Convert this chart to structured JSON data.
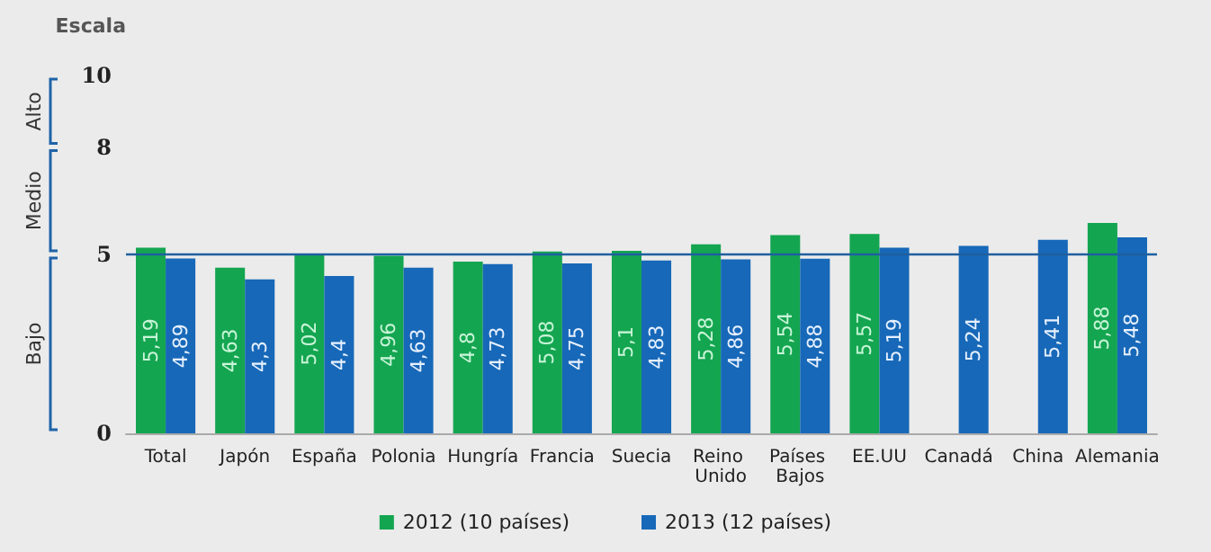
{
  "chart_data": {
    "type": "bar",
    "ylabel": "Escala",
    "categories": [
      "Total",
      "Japón",
      "España",
      "Polonia",
      "Hungría",
      "Francia",
      "Suecia",
      "Reino Unido",
      "Países Bajos",
      "EE.UU",
      "Canadá",
      "China",
      "Alemania"
    ],
    "series": [
      {
        "name": "2012 (10 países)",
        "color": "#14a550",
        "values": [
          5.19,
          4.63,
          5.02,
          4.96,
          4.8,
          5.08,
          5.1,
          5.28,
          5.54,
          5.57,
          null,
          null,
          5.88
        ],
        "value_labels": [
          "5,19",
          "4,63",
          "5,02",
          "4,96",
          "4,8",
          "5,08",
          "5,1",
          "5,28",
          "5,54",
          "5,57",
          null,
          null,
          "5,88"
        ]
      },
      {
        "name": "2013 (12 países)",
        "color": "#1768b8",
        "values": [
          4.89,
          4.3,
          4.4,
          4.63,
          4.73,
          4.75,
          4.83,
          4.86,
          4.88,
          5.19,
          5.24,
          5.41,
          5.48
        ],
        "value_labels": [
          "4,89",
          "4,3",
          "4,4",
          "4,63",
          "4,73",
          "4,75",
          "4,83",
          "4,86",
          "4,88",
          "5,19",
          "5,24",
          "5,41",
          "5,48"
        ]
      }
    ],
    "ylim": [
      0,
      10
    ],
    "yticks": [
      0,
      5,
      8,
      10
    ],
    "grid": false,
    "legend": "bottom",
    "ref_lines": [
      {
        "axis": "y",
        "value": 5,
        "color": "#1f5fa0"
      }
    ],
    "annotations": [
      "Bajo",
      "Medio",
      "Alto"
    ]
  }
}
